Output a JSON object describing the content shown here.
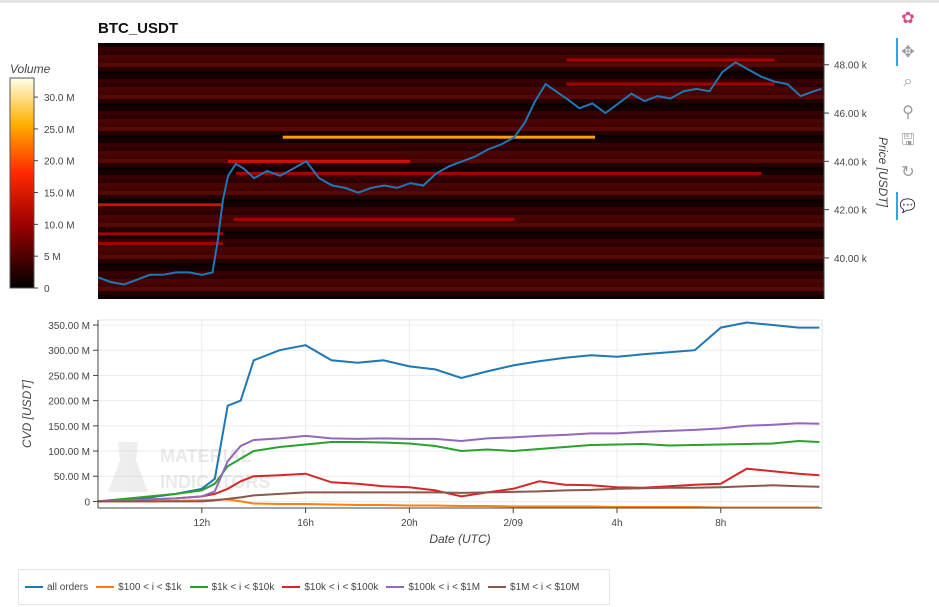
{
  "title": "BTC_USDT",
  "colorbar": {
    "title": "Volume",
    "ticks": [
      {
        "label": "30.0 M",
        "value": 30000000
      },
      {
        "label": "25.0 M",
        "value": 25000000
      },
      {
        "label": "20.0 M",
        "value": 20000000
      },
      {
        "label": "15.0 M",
        "value": 15000000
      },
      {
        "label": "10.0 M",
        "value": 10000000
      },
      {
        "label": "5 M",
        "value": 5000000
      },
      {
        "label": "0",
        "value": 0
      }
    ]
  },
  "toolbar": {
    "items": [
      {
        "name": "bokeh-logo-icon",
        "glyph": "✿",
        "active": false
      },
      {
        "name": "pan-tool-icon",
        "glyph": "✥",
        "active": true
      },
      {
        "name": "box-zoom-tool-icon",
        "glyph": "⌕",
        "active": false
      },
      {
        "name": "wheel-zoom-tool-icon",
        "glyph": "⚲",
        "active": false
      },
      {
        "name": "save-tool-icon",
        "glyph": "🖫",
        "active": false
      },
      {
        "name": "reset-tool-icon",
        "glyph": "↻",
        "active": false
      },
      {
        "name": "hover-tool-icon",
        "glyph": "💬",
        "active": true
      }
    ]
  },
  "watermark": [
    "MATERIAL",
    "INDICATORS"
  ],
  "legend": [
    {
      "label": "all orders",
      "color": "#1f77b4"
    },
    {
      "label": "$100 < i < $1k",
      "color": "#ff7f0e"
    },
    {
      "label": "$1k < i < $10k",
      "color": "#2ca02c"
    },
    {
      "label": "$10k < i < $100k",
      "color": "#d62728"
    },
    {
      "label": "$100k < i < $1M",
      "color": "#9467bd"
    },
    {
      "label": "$1M < i < $10M",
      "color": "#8c564b"
    }
  ],
  "chart_data": [
    {
      "type": "heatmap",
      "title": "BTC_USDT",
      "xlabel": "",
      "ylabel": "Price [USDT]",
      "ylim": [
        38300,
        48900
      ],
      "yticks": [
        {
          "label": "48.00 k",
          "value": 48000
        },
        {
          "label": "46.00 k",
          "value": 46000
        },
        {
          "label": "44.00 k",
          "value": 44000
        },
        {
          "label": "42.00 k",
          "value": 42000
        },
        {
          "label": "40.00 k",
          "value": 40000
        }
      ],
      "heat_level_bands": [
        {
          "price": 45000,
          "from_hour": 15.1,
          "to_hour": 27.1,
          "volume": 30000000
        },
        {
          "price": 44000,
          "from_hour": 13.0,
          "to_hour": 20.0,
          "volume": 12000000
        },
        {
          "price": 42200,
          "from_hour": 8.0,
          "to_hour": 12.8,
          "volume": 10000000
        },
        {
          "price": 41600,
          "from_hour": 13.2,
          "to_hour": 24.0,
          "volume": 9000000
        },
        {
          "price": 41000,
          "from_hour": 8.0,
          "to_hour": 12.8,
          "volume": 9000000
        },
        {
          "price": 40600,
          "from_hour": 8.0,
          "to_hour": 12.8,
          "volume": 8000000
        },
        {
          "price": 43500,
          "from_hour": 13.3,
          "to_hour": 33.5,
          "volume": 7000000
        },
        {
          "price": 47200,
          "from_hour": 26.0,
          "to_hour": 34.0,
          "volume": 8000000
        },
        {
          "price": 48200,
          "from_hour": 26.0,
          "to_hour": 34.0,
          "volume": 7000000
        }
      ],
      "series": [
        {
          "name": "price",
          "color": "#1f77b4",
          "x": [
            8.0,
            8.5,
            9.0,
            9.5,
            10.0,
            10.5,
            11.0,
            11.5,
            12.0,
            12.4,
            12.6,
            12.8,
            13.0,
            13.3,
            13.6,
            14.0,
            14.5,
            15.0,
            15.5,
            16.0,
            16.5,
            17.0,
            17.5,
            18.0,
            18.5,
            19.0,
            19.5,
            20.0,
            20.5,
            21.0,
            21.5,
            22.0,
            22.5,
            23.0,
            23.5,
            24.0,
            24.4,
            24.8,
            25.2,
            25.6,
            26.0,
            26.5,
            27.0,
            27.5,
            28.0,
            28.5,
            29.0,
            29.5,
            30.0,
            30.5,
            31.0,
            31.5,
            32.0,
            32.5,
            33.0,
            33.5,
            34.0,
            34.5,
            35.0,
            35.5,
            35.8
          ],
          "y": [
            39200,
            39000,
            38900,
            39100,
            39300,
            39300,
            39400,
            39400,
            39300,
            39400,
            40700,
            42400,
            43400,
            43900,
            43700,
            43300,
            43600,
            43400,
            43700,
            44000,
            43300,
            43000,
            42900,
            42700,
            42900,
            43000,
            42900,
            43100,
            43000,
            43500,
            43800,
            44000,
            44200,
            44500,
            44700,
            45000,
            45600,
            46500,
            47200,
            46900,
            46600,
            46200,
            46400,
            46000,
            46400,
            46800,
            46500,
            46700,
            46600,
            46900,
            47000,
            46900,
            47700,
            48100,
            47800,
            47500,
            47300,
            47200,
            46700,
            46900,
            47000
          ]
        }
      ]
    },
    {
      "type": "line",
      "title": "",
      "xlabel": "Date (UTC)",
      "ylabel": "CVD [USDT]",
      "xlim": [
        8.0,
        35.9
      ],
      "ylim": [
        -13000000,
        360000000
      ],
      "xticks": [
        {
          "label": "12h",
          "value": 12
        },
        {
          "label": "16h",
          "value": 16
        },
        {
          "label": "20h",
          "value": 20
        },
        {
          "label": "2/09",
          "value": 24
        },
        {
          "label": "4h",
          "value": 28
        },
        {
          "label": "8h",
          "value": 32
        }
      ],
      "yticks": [
        {
          "label": "350.00 M",
          "value": 350000000
        },
        {
          "label": "300.00 M",
          "value": 300000000
        },
        {
          "label": "250.00 M",
          "value": 250000000
        },
        {
          "label": "200.00 M",
          "value": 200000000
        },
        {
          "label": "150.00 M",
          "value": 150000000
        },
        {
          "label": "100.00 M",
          "value": 100000000
        },
        {
          "label": "50.00 M",
          "value": 50000000
        },
        {
          "label": "0",
          "value": 0
        }
      ],
      "x": [
        8,
        9,
        10,
        11,
        12,
        12.5,
        13,
        13.5,
        14,
        15,
        16,
        17,
        18,
        19,
        20,
        21,
        22,
        23,
        24,
        25,
        26,
        27,
        28,
        29,
        30,
        31,
        32,
        33,
        34,
        35,
        35.8
      ],
      "series": [
        {
          "name": "all orders",
          "color": "#1f77b4",
          "values": [
            0,
            3000000,
            8000000,
            15000000,
            25000000,
            45000000,
            190000000,
            200000000,
            280000000,
            300000000,
            310000000,
            280000000,
            275000000,
            280000000,
            268000000,
            262000000,
            245000000,
            258000000,
            270000000,
            278000000,
            285000000,
            290000000,
            287000000,
            292000000,
            296000000,
            300000000,
            345000000,
            355000000,
            350000000,
            345000000,
            345000000
          ]
        },
        {
          "name": "$100 < i < $1k",
          "color": "#ff7f0e",
          "values": [
            0,
            0,
            0,
            1000000,
            2000000,
            3000000,
            4000000,
            0,
            -4000000,
            -5000000,
            -5000000,
            -6000000,
            -7000000,
            -7000000,
            -8000000,
            -8000000,
            -9000000,
            -9000000,
            -10000000,
            -10000000,
            -10000000,
            -10000000,
            -11000000,
            -11000000,
            -11000000,
            -11000000,
            -12000000,
            -12000000,
            -12000000,
            -12000000,
            -12000000
          ]
        },
        {
          "name": "$1k < i < $10k",
          "color": "#2ca02c",
          "values": [
            0,
            5000000,
            10000000,
            15000000,
            22000000,
            35000000,
            70000000,
            85000000,
            100000000,
            108000000,
            113000000,
            118000000,
            118000000,
            117000000,
            115000000,
            110000000,
            100000000,
            103000000,
            100000000,
            104000000,
            108000000,
            112000000,
            113000000,
            114000000,
            111000000,
            112000000,
            113000000,
            114000000,
            115000000,
            120000000,
            118000000
          ]
        },
        {
          "name": "$10k < i < $100k",
          "color": "#d62728",
          "values": [
            0,
            2000000,
            4000000,
            6000000,
            10000000,
            15000000,
            25000000,
            40000000,
            50000000,
            52000000,
            55000000,
            38000000,
            35000000,
            30000000,
            28000000,
            22000000,
            10000000,
            18000000,
            25000000,
            40000000,
            33000000,
            32000000,
            28000000,
            27000000,
            30000000,
            33000000,
            35000000,
            65000000,
            60000000,
            55000000,
            52000000
          ]
        },
        {
          "name": "$100k < i < $1M",
          "color": "#9467bd",
          "values": [
            0,
            2000000,
            4000000,
            6000000,
            10000000,
            20000000,
            80000000,
            110000000,
            122000000,
            125000000,
            130000000,
            125000000,
            124000000,
            125000000,
            124000000,
            124000000,
            120000000,
            125000000,
            127000000,
            130000000,
            132000000,
            135000000,
            135000000,
            138000000,
            140000000,
            142000000,
            145000000,
            150000000,
            152000000,
            155000000,
            154000000
          ]
        },
        {
          "name": "$1M < i < $10M",
          "color": "#8c564b",
          "values": [
            0,
            0,
            0,
            0,
            0,
            2000000,
            5000000,
            8000000,
            12000000,
            15000000,
            18000000,
            18000000,
            18000000,
            18000000,
            18000000,
            18000000,
            17000000,
            18000000,
            19000000,
            20000000,
            22000000,
            23000000,
            25000000,
            26000000,
            27000000,
            27000000,
            28000000,
            30000000,
            32000000,
            30000000,
            29000000
          ]
        }
      ]
    }
  ]
}
